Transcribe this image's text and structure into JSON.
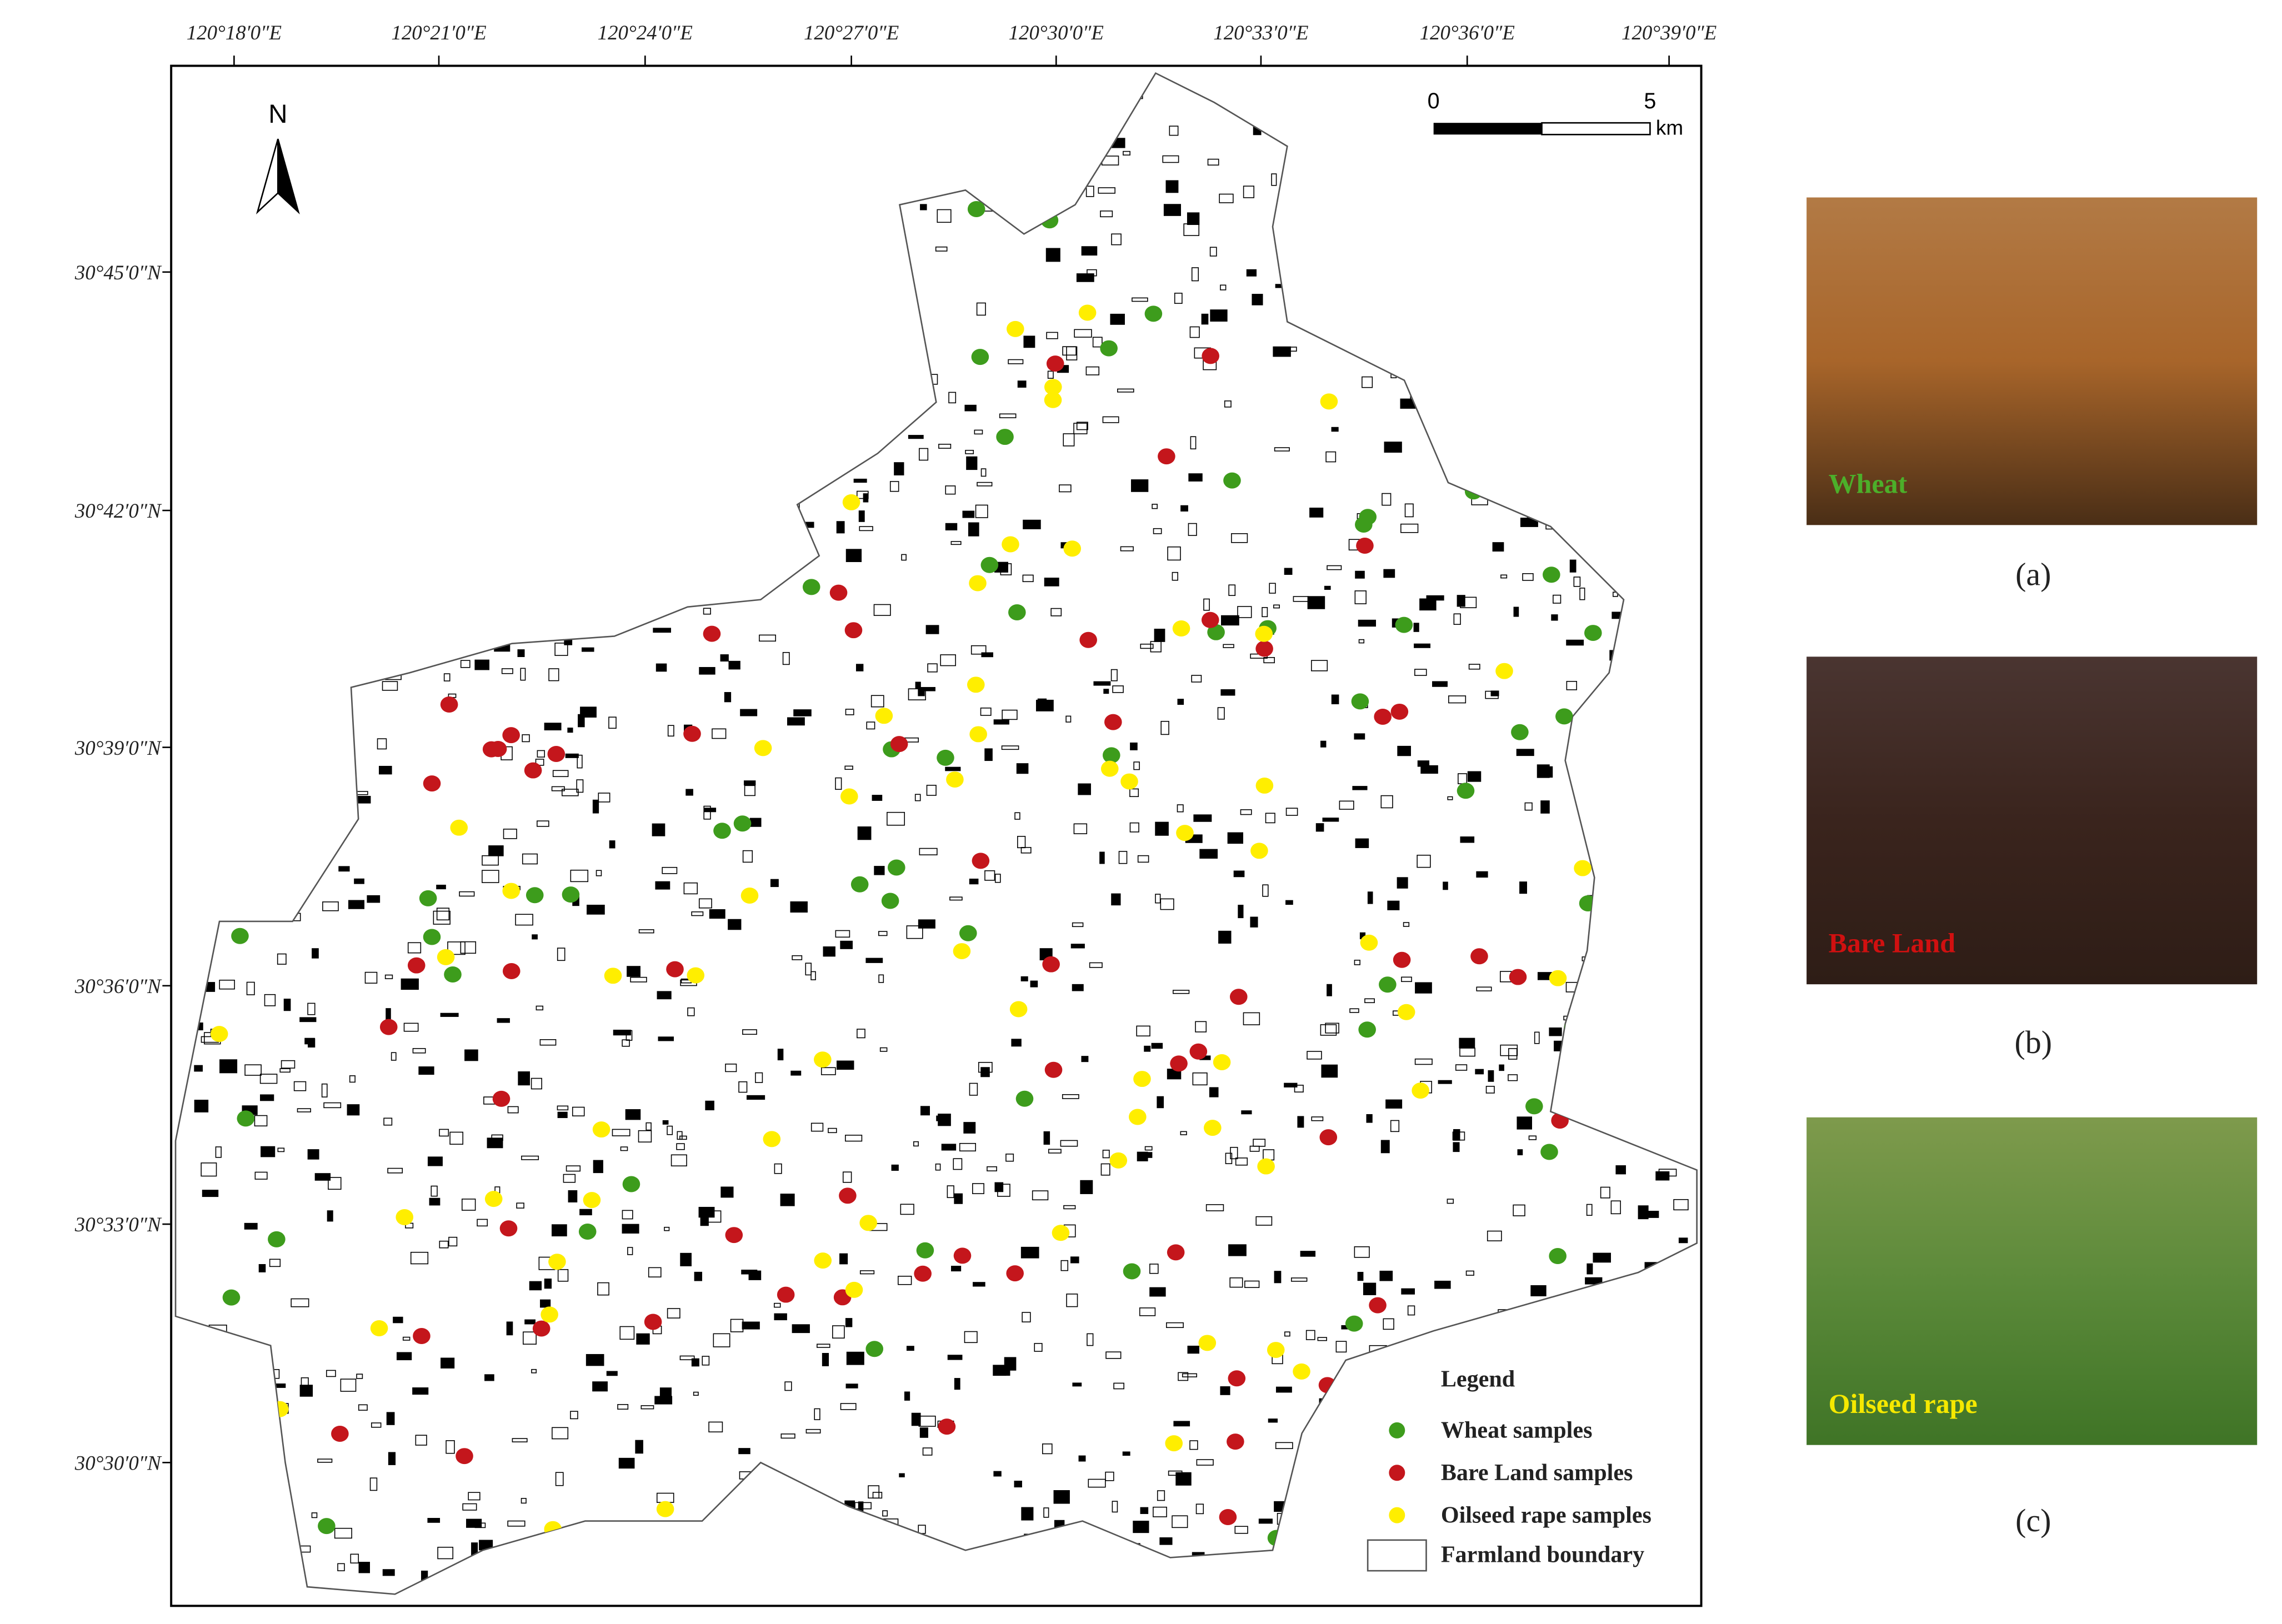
{
  "map": {
    "lon_labels": [
      "120°18′0″E",
      "120°21′0″E",
      "120°24′0″E",
      "120°27′0″E",
      "120°30′0″E",
      "120°33′0″E",
      "120°36′0″E",
      "120°39′0″E"
    ],
    "lat_labels": [
      "30°45′0″N",
      "30°42′0″N",
      "30°39′0″N",
      "30°36′0″N",
      "30°33′0″N",
      "30°30′0″N"
    ],
    "north": "N",
    "scale": {
      "ticks": [
        0,
        5
      ],
      "unit": "km"
    },
    "legend": {
      "title": "Legend",
      "items": [
        {
          "label": "Wheat samples",
          "color": "#3d9c1c"
        },
        {
          "label": "Bare Land samples",
          "color": "#c4161c"
        },
        {
          "label": "Oilseed rape samples",
          "color": "#ffee00"
        },
        {
          "label": "Farmland boundary"
        }
      ]
    }
  },
  "photos": [
    {
      "label": "Wheat",
      "label_color": "#4caf2a",
      "caption": "(a)"
    },
    {
      "label": "Bare Land",
      "label_color": "#d01010",
      "caption": "(b)"
    },
    {
      "label": "Oilseed rape",
      "label_color": "#f5e800",
      "caption": "(c)"
    }
  ]
}
